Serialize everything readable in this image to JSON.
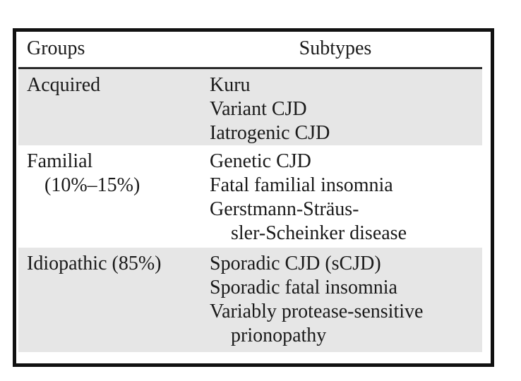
{
  "table": {
    "headers": {
      "groups": "Groups",
      "subtypes": "Subtypes"
    },
    "rows": [
      {
        "group": [
          "Acquired"
        ],
        "subtypes": [
          "Kuru",
          "Variant CJD",
          "Iatrogenic CJD"
        ]
      },
      {
        "group": [
          "Familial",
          "(10%–15%)"
        ],
        "subtypes": [
          "Genetic CJD",
          "Fatal familial insomnia",
          "Gerstmann-Sträus-",
          "sler-Scheinker disease"
        ]
      },
      {
        "group": [
          "Idiopathic (85%)"
        ],
        "subtypes": [
          "Sporadic CJD (sCJD)",
          "Sporadic fatal insomnia",
          "Variably protease-sensitive",
          "prionopathy"
        ]
      }
    ],
    "colors": {
      "row_shade": "#e6e6e6",
      "border": "#111111",
      "rule": "#2b2b2b",
      "background": "#ffffff",
      "text": "#1a1a1a"
    }
  },
  "chart_data": {
    "type": "table",
    "title": "",
    "columns": [
      "Groups",
      "Subtypes"
    ],
    "rows": [
      [
        "Acquired",
        "Kuru; Variant CJD; Iatrogenic CJD"
      ],
      [
        "Familial (10%–15%)",
        "Genetic CJD; Fatal familial insomnia; Gerstmann-Sträussler-Scheinker disease"
      ],
      [
        "Idiopathic (85%)",
        "Sporadic CJD (sCJD); Sporadic fatal insomnia; Variably protease-sensitive prionopathy"
      ]
    ]
  }
}
